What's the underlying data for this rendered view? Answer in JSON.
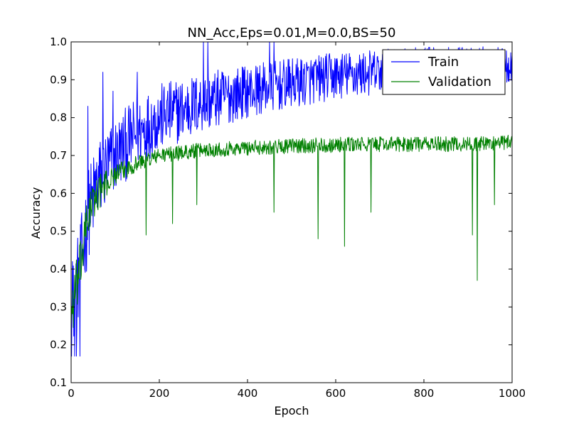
{
  "chart_data": {
    "type": "line",
    "title": "NN_Acc,Eps=0.01,M=0.0,BS=50",
    "xlabel": "Epoch",
    "ylabel": "Accuracy",
    "xlim": [
      0,
      1000
    ],
    "ylim": [
      0.1,
      1.0
    ],
    "xticks": [
      0,
      200,
      400,
      600,
      800,
      1000
    ],
    "xtick_labels": [
      "0",
      "200",
      "400",
      "600",
      "800",
      "1000"
    ],
    "yticks": [
      0.1,
      0.2,
      0.3,
      0.4,
      0.5,
      0.6,
      0.7,
      0.8,
      0.9,
      1.0
    ],
    "ytick_labels": [
      "0.1",
      "0.2",
      "0.3",
      "0.4",
      "0.5",
      "0.6",
      "0.7",
      "0.8",
      "0.9",
      "1.0"
    ],
    "grid": false,
    "legend_position": "top-right",
    "series": [
      {
        "name": "Train",
        "color": "#0000ff",
        "trend": [
          [
            0,
            0.28
          ],
          [
            20,
            0.4
          ],
          [
            40,
            0.55
          ],
          [
            60,
            0.63
          ],
          [
            100,
            0.7
          ],
          [
            150,
            0.76
          ],
          [
            200,
            0.8
          ],
          [
            300,
            0.84
          ],
          [
            400,
            0.87
          ],
          [
            500,
            0.89
          ],
          [
            600,
            0.91
          ],
          [
            700,
            0.92
          ],
          [
            800,
            0.93
          ],
          [
            900,
            0.935
          ],
          [
            1000,
            0.94
          ]
        ],
        "noise": [
          [
            0,
            0.12
          ],
          [
            40,
            0.12
          ],
          [
            100,
            0.1
          ],
          [
            200,
            0.09
          ],
          [
            400,
            0.07
          ],
          [
            700,
            0.06
          ],
          [
            1000,
            0.05
          ]
        ],
        "clip": [
          0.17,
          1.0
        ],
        "spikes": [
          [
            3,
            0.42
          ],
          [
            8,
            0.17
          ],
          [
            12,
            0.17
          ],
          [
            20,
            0.17
          ],
          [
            38,
            0.83
          ],
          [
            72,
            0.92
          ],
          [
            95,
            0.87
          ],
          [
            150,
            0.92
          ],
          [
            300,
            1.0
          ],
          [
            310,
            1.0
          ],
          [
            450,
            1.0
          ],
          [
            460,
            1.0
          ]
        ]
      },
      {
        "name": "Validation",
        "color": "#008000",
        "trend": [
          [
            0,
            0.28
          ],
          [
            20,
            0.4
          ],
          [
            40,
            0.55
          ],
          [
            60,
            0.6
          ],
          [
            100,
            0.65
          ],
          [
            150,
            0.68
          ],
          [
            200,
            0.7
          ],
          [
            300,
            0.715
          ],
          [
            400,
            0.72
          ],
          [
            500,
            0.725
          ],
          [
            600,
            0.728
          ],
          [
            700,
            0.73
          ],
          [
            800,
            0.73
          ],
          [
            900,
            0.73
          ],
          [
            1000,
            0.735
          ]
        ],
        "noise": [
          [
            0,
            0.08
          ],
          [
            40,
            0.06
          ],
          [
            100,
            0.025
          ],
          [
            200,
            0.02
          ],
          [
            1000,
            0.02
          ]
        ],
        "clip": [
          0.2,
          0.76
        ],
        "spikes": [
          [
            170,
            0.49
          ],
          [
            230,
            0.52
          ],
          [
            285,
            0.57
          ],
          [
            460,
            0.55
          ],
          [
            560,
            0.48
          ],
          [
            620,
            0.46
          ],
          [
            680,
            0.55
          ],
          [
            910,
            0.49
          ],
          [
            921,
            0.37
          ],
          [
            960,
            0.57
          ]
        ]
      }
    ]
  }
}
